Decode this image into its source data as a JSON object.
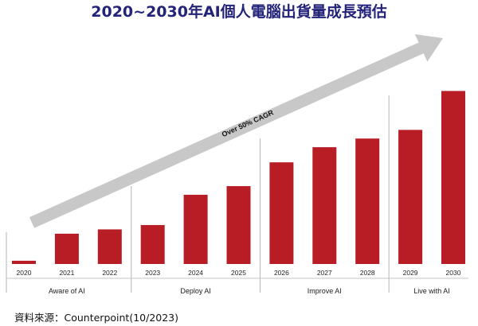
{
  "chart_data": {
    "type": "bar",
    "title": "2020~2030年AI個人電腦出貨量成長預估",
    "categories": [
      "2020",
      "2021",
      "2022",
      "2023",
      "2024",
      "2025",
      "2026",
      "2027",
      "2028",
      "2029",
      "2030"
    ],
    "values": [
      1.5,
      14,
      16,
      18,
      32,
      36,
      47,
      54,
      58,
      62,
      80
    ],
    "ylim": [
      0,
      100
    ],
    "xlabel": "",
    "ylabel": "",
    "grid": false,
    "legend": "none",
    "phases": [
      {
        "label": "Aware of AI",
        "categories": [
          "2020",
          "2021",
          "2022"
        ]
      },
      {
        "label": "Deploy AI",
        "categories": [
          "2023",
          "2024",
          "2025"
        ]
      },
      {
        "label": "Improve AI",
        "categories": [
          "2026",
          "2027",
          "2028"
        ]
      },
      {
        "label": "Live with AI",
        "categories": [
          "2029",
          "2030"
        ]
      }
    ],
    "annotation": "Over 50% CAGR",
    "bar_color": "#b81c25",
    "arrow_color": "#c8c8c8"
  },
  "source": "資料來源：Counterpoint(10/2023)"
}
